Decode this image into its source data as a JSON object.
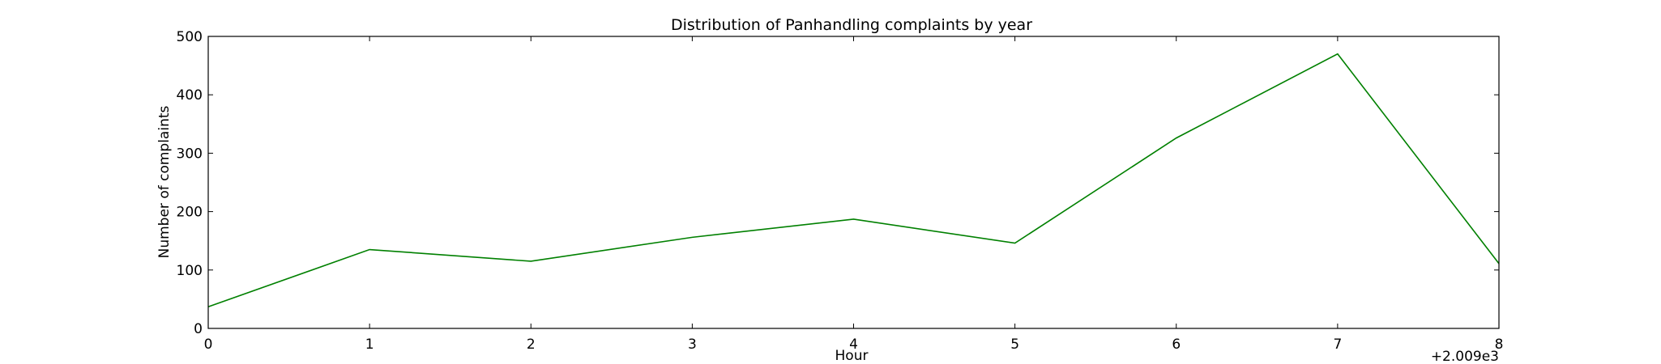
{
  "chart_data": {
    "type": "line",
    "title": "Distribution of  Panhandling complaints by year",
    "xlabel": "Hour",
    "ylabel": "Number of complaints",
    "x_offset_label": "+2.009e3",
    "x_tick_labels": [
      "0",
      "1",
      "2",
      "3",
      "4",
      "5",
      "6",
      "7",
      "8"
    ],
    "y_tick_labels": [
      "0",
      "100",
      "200",
      "300",
      "400",
      "500"
    ],
    "xlim": [
      0,
      8
    ],
    "ylim": [
      0,
      500
    ],
    "grid": false,
    "series": [
      {
        "color": "#008000",
        "x": [
          0,
          1,
          2,
          3,
          4,
          5,
          6,
          7,
          8
        ],
        "values": [
          37,
          135,
          115,
          156,
          187,
          146,
          326,
          470,
          111
        ]
      }
    ]
  }
}
